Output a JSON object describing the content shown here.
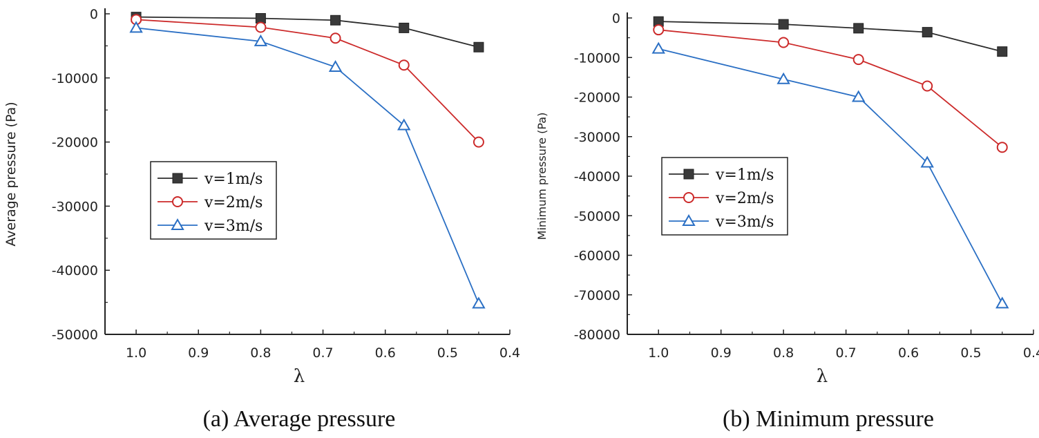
{
  "chart_data": [
    {
      "type": "line",
      "title": "",
      "caption": "(a) Average pressure",
      "xlabel": "λ",
      "ylabel": "Average pressure (Pa)",
      "xlim": [
        1.05,
        0.4
      ],
      "ylim": [
        -50000,
        0
      ],
      "x_ticks": [
        "1.0",
        "0.9",
        "0.8",
        "0.7",
        "0.6",
        "0.5",
        "0.4"
      ],
      "y_ticks": [
        "0",
        "-10000",
        "-20000",
        "-30000",
        "-40000",
        "-50000"
      ],
      "x": [
        1.0,
        0.8,
        0.68,
        0.57,
        0.45
      ],
      "series": [
        {
          "name": "v=1m/s",
          "color": "#2b2b2b",
          "marker": "square",
          "values": [
            -500,
            -700,
            -1000,
            -2200,
            -5200
          ]
        },
        {
          "name": "v=2m/s",
          "color": "#cc2a2a",
          "marker": "circle",
          "values": [
            -900,
            -2100,
            -3800,
            -8000,
            -20000
          ]
        },
        {
          "name": "v=3m/s",
          "color": "#2a6fc4",
          "marker": "triangle",
          "values": [
            -2200,
            -4300,
            -8300,
            -17400,
            -45200
          ]
        }
      ],
      "legend_position": "center-left"
    },
    {
      "type": "line",
      "title": "",
      "caption": "(b) Minimum pressure",
      "xlabel": "λ",
      "ylabel": "Minimum pressure (Pa)",
      "xlim": [
        1.05,
        0.4
      ],
      "ylim": [
        -80000,
        0
      ],
      "x_ticks": [
        "1.0",
        "0.9",
        "0.8",
        "0.7",
        "0.6",
        "0.5",
        "0.4"
      ],
      "y_ticks": [
        "0",
        "-10000",
        "-20000",
        "-30000",
        "-40000",
        "-50000",
        "-60000",
        "-70000",
        "-80000"
      ],
      "x": [
        1.0,
        0.8,
        0.68,
        0.57,
        0.45
      ],
      "series": [
        {
          "name": "v=1m/s",
          "color": "#2b2b2b",
          "marker": "square",
          "values": [
            -900,
            -1600,
            -2600,
            -3600,
            -8500
          ]
        },
        {
          "name": "v=2m/s",
          "color": "#cc2a2a",
          "marker": "circle",
          "values": [
            -3000,
            -6200,
            -10500,
            -17200,
            -32700
          ]
        },
        {
          "name": "v=3m/s",
          "color": "#2a6fc4",
          "marker": "triangle",
          "values": [
            -7800,
            -15500,
            -20000,
            -36600,
            -72200
          ]
        }
      ],
      "legend_position": "center-left"
    }
  ]
}
